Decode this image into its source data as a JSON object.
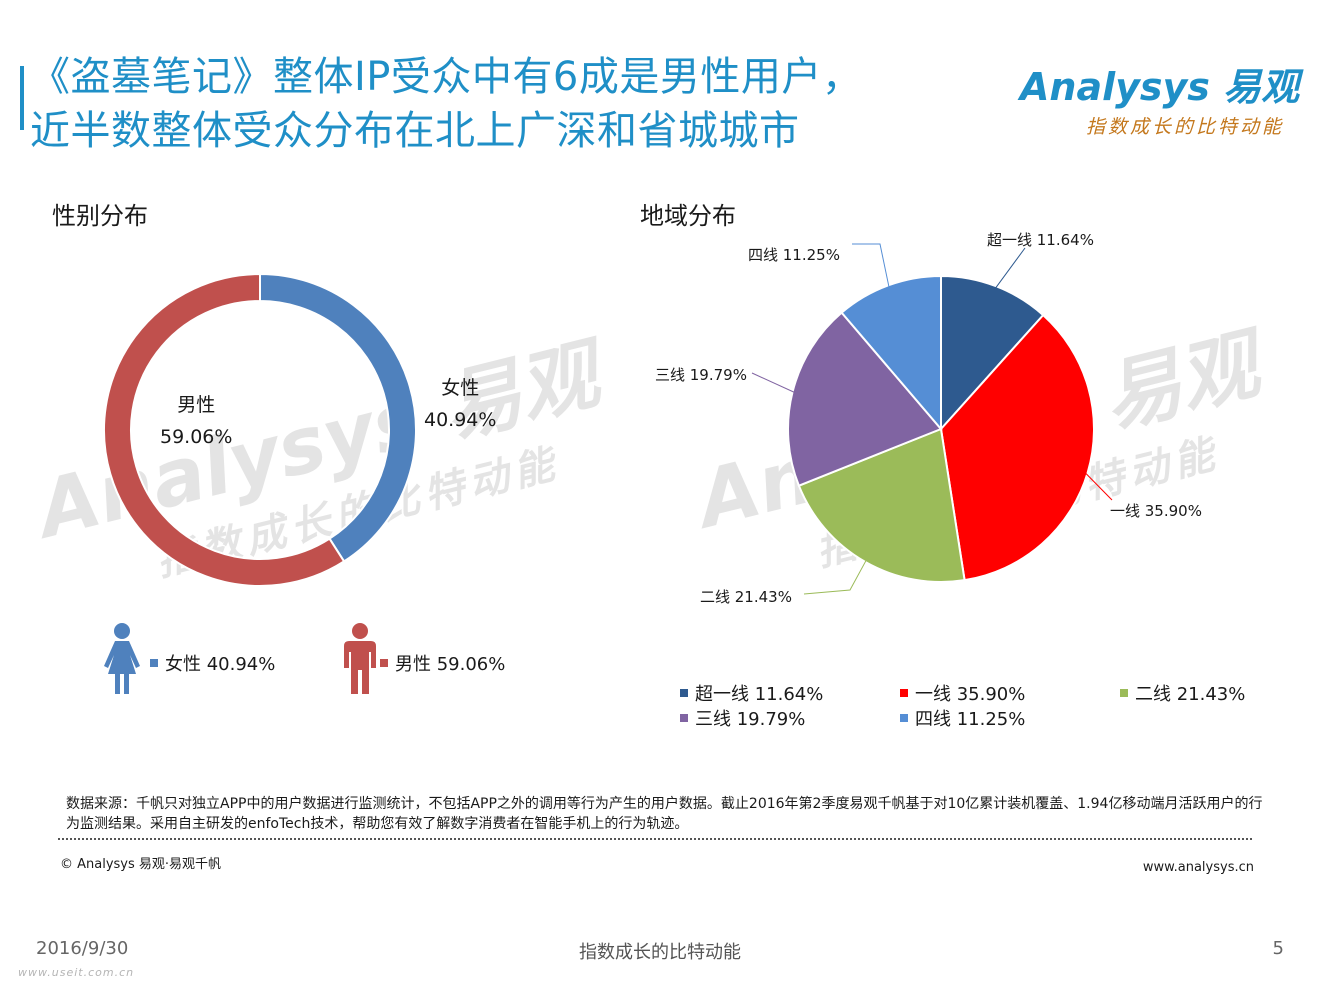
{
  "title": {
    "line1": "《盗墓笔记》整体IP受众中有6成是男性用户，",
    "line2": "近半数整体受众分布在北上广深和省城城市"
  },
  "logo": {
    "name": "Analysys 易观",
    "slogan": "指数成长的比特动能"
  },
  "watermark": {
    "name": "Analysys 易观",
    "slogan": "指数成长的比特动能"
  },
  "colors": {
    "accent": "#1f8fc7",
    "female": "#4f81bd",
    "male": "#c0504d",
    "tier_super": "#2e5a8f",
    "tier_1": "#ff0000",
    "tier_2": "#9bbb59",
    "tier_3": "#8064a2",
    "tier_4": "#558ed5"
  },
  "chart_data": [
    {
      "type": "pie",
      "variant": "donut",
      "title": "性别分布",
      "categories": [
        "女性",
        "男性"
      ],
      "values": [
        40.94,
        59.06
      ],
      "value_labels": [
        "40.94%",
        "59.06%"
      ],
      "colors": [
        "#4f81bd",
        "#c0504d"
      ],
      "legend": [
        "女性 40.94%",
        "男性 59.06%"
      ],
      "legend_position": "bottom"
    },
    {
      "type": "pie",
      "title": "地域分布",
      "categories": [
        "超一线",
        "一线",
        "二线",
        "三线",
        "四线"
      ],
      "values": [
        11.64,
        35.9,
        21.43,
        19.79,
        11.25
      ],
      "data_labels": [
        "超一线  11.64%",
        "一线  35.90%",
        "二线  21.43%",
        "三线 19.79%",
        "四线 11.25%"
      ],
      "colors": [
        "#2e5a8f",
        "#ff0000",
        "#9bbb59",
        "#8064a2",
        "#558ed5"
      ],
      "legend": [
        "超一线  11.64%",
        "一线  35.90%",
        "二线  21.43%",
        "三线  19.79%",
        "四线  11.25%"
      ],
      "legend_position": "bottom"
    }
  ],
  "source": {
    "text": "数据来源：千帆只对独立APP中的用户数据进行监测统计，不包括APP之外的调用等行为产生的用户数据。截止2016年第2季度易观千帆基于对10亿累计装机覆盖、1.94亿移动端月活跃用户的行为监测结果。采用自主研发的enfoTech技术，帮助您有效了解数字消费者在智能手机上的行为轨迹。"
  },
  "copyright": "© Analysys 易观·易观千帆",
  "website": "www.analysys.cn",
  "footer": {
    "date": "2016/9/30",
    "center": "指数成长的比特动能",
    "page": "5",
    "credit": "www.useit.com.cn"
  }
}
